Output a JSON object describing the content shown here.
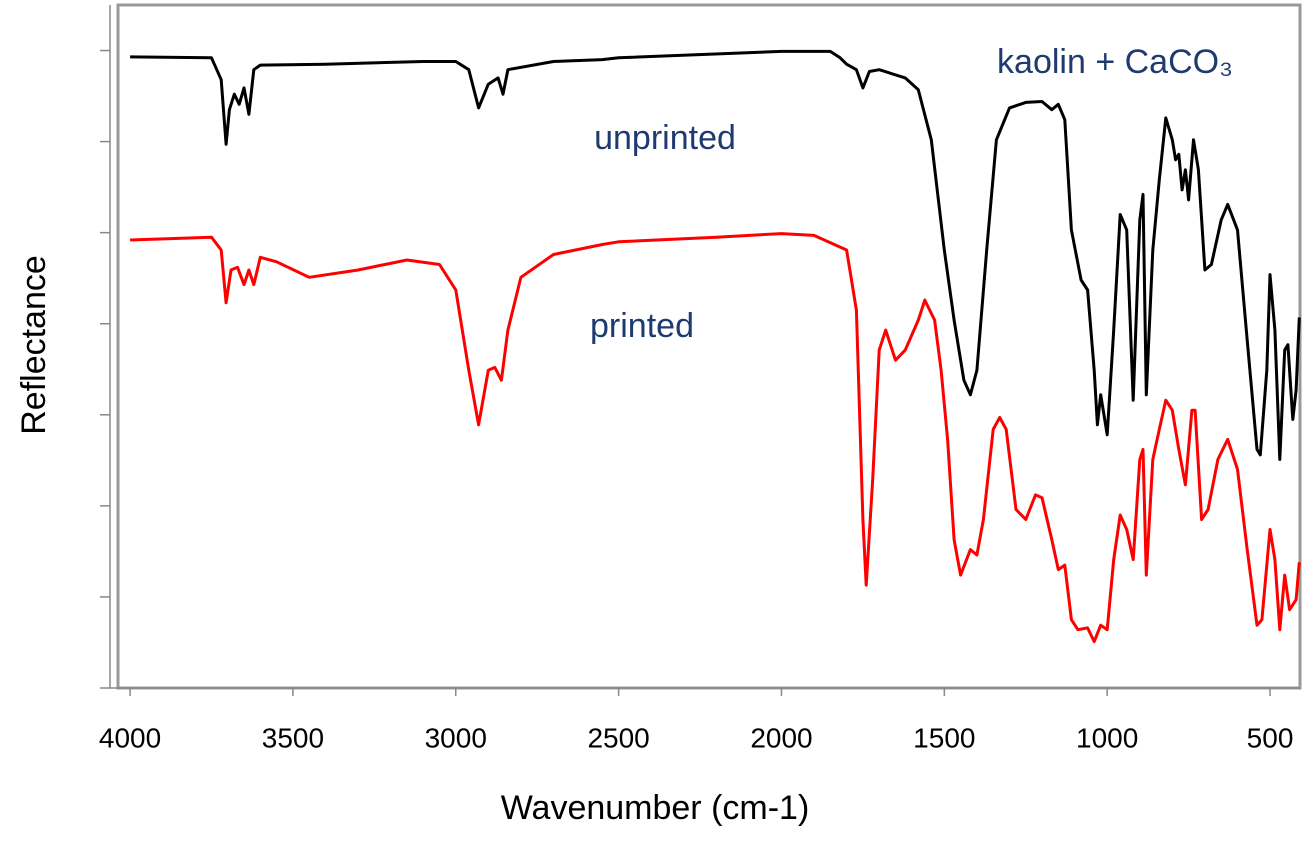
{
  "chart_data": {
    "type": "line",
    "xlabel": "Wavenumber (cm-1)",
    "ylabel": "Reflectance",
    "xlim": [
      4037,
      408
    ],
    "xticks": [
      4000,
      3500,
      3000,
      2500,
      2000,
      1500,
      1000,
      500
    ],
    "ylim": [
      0,
      7.5
    ],
    "yticks": [
      0,
      1,
      2,
      3,
      4,
      5,
      6,
      7
    ],
    "annotations": [
      "kaolin + CaCO₃",
      "unprinted",
      "printed"
    ],
    "series": [
      {
        "color": "#000000",
        "x": [
          4000,
          3750,
          3720,
          3705,
          3695,
          3680,
          3665,
          3650,
          3635,
          3620,
          3600,
          3400,
          3100,
          3000,
          2960,
          2930,
          2900,
          2870,
          2855,
          2840,
          2700,
          2550,
          2500,
          2000,
          1850,
          1820,
          1800,
          1770,
          1750,
          1730,
          1700,
          1620,
          1580,
          1540,
          1500,
          1470,
          1440,
          1420,
          1400,
          1370,
          1340,
          1300,
          1250,
          1200,
          1170,
          1150,
          1130,
          1110,
          1080,
          1060,
          1040,
          1030,
          1020,
          1000,
          980,
          960,
          940,
          920,
          900,
          890,
          880,
          860,
          840,
          820,
          800,
          790,
          780,
          770,
          760,
          750,
          735,
          720,
          700,
          680,
          650,
          630,
          600,
          570,
          540,
          530,
          510,
          500,
          485,
          470,
          455,
          445,
          430,
          420,
          410
        ],
        "values": [
          6.93,
          6.92,
          6.68,
          5.97,
          6.35,
          6.52,
          6.41,
          6.59,
          6.3,
          6.79,
          6.84,
          6.85,
          6.88,
          6.88,
          6.79,
          6.37,
          6.63,
          6.7,
          6.52,
          6.79,
          6.88,
          6.9,
          6.92,
          6.99,
          6.99,
          6.92,
          6.85,
          6.79,
          6.59,
          6.77,
          6.79,
          6.7,
          6.57,
          6.02,
          4.81,
          4.04,
          3.38,
          3.22,
          3.49,
          4.81,
          6.02,
          6.37,
          6.43,
          6.44,
          6.35,
          6.41,
          6.24,
          5.03,
          4.48,
          4.37,
          3.49,
          2.89,
          3.22,
          2.78,
          3.93,
          5.2,
          5.03,
          3.16,
          5.14,
          5.42,
          3.22,
          4.81,
          5.58,
          6.26,
          6.02,
          5.8,
          5.86,
          5.47,
          5.69,
          5.36,
          6.02,
          5.69,
          4.59,
          4.65,
          5.14,
          5.31,
          5.03,
          3.82,
          2.62,
          2.56,
          3.49,
          4.54,
          3.93,
          2.51,
          3.71,
          3.77,
          2.95,
          3.27,
          4.07
        ]
      },
      {
        "color": "#ff0000",
        "x": [
          4000,
          3750,
          3720,
          3705,
          3690,
          3670,
          3650,
          3635,
          3620,
          3600,
          3550,
          3450,
          3300,
          3150,
          3050,
          3000,
          2960,
          2930,
          2900,
          2880,
          2860,
          2840,
          2800,
          2700,
          2550,
          2500,
          2200,
          2000,
          1900,
          1800,
          1770,
          1750,
          1740,
          1720,
          1700,
          1680,
          1650,
          1620,
          1580,
          1560,
          1530,
          1510,
          1490,
          1470,
          1450,
          1420,
          1400,
          1380,
          1350,
          1330,
          1310,
          1280,
          1250,
          1220,
          1200,
          1170,
          1150,
          1130,
          1110,
          1090,
          1060,
          1040,
          1020,
          1000,
          980,
          960,
          940,
          920,
          900,
          890,
          880,
          860,
          840,
          820,
          800,
          780,
          760,
          740,
          730,
          710,
          690,
          660,
          630,
          600,
          570,
          540,
          525,
          500,
          485,
          470,
          455,
          440,
          420,
          410
        ],
        "values": [
          4.92,
          4.95,
          4.81,
          4.23,
          4.59,
          4.62,
          4.43,
          4.59,
          4.43,
          4.73,
          4.68,
          4.51,
          4.59,
          4.7,
          4.65,
          4.37,
          3.49,
          2.89,
          3.49,
          3.52,
          3.38,
          3.93,
          4.51,
          4.76,
          4.87,
          4.9,
          4.95,
          4.99,
          4.97,
          4.81,
          4.15,
          1.85,
          1.13,
          2.29,
          3.71,
          3.93,
          3.6,
          3.71,
          4.04,
          4.26,
          4.04,
          3.49,
          2.73,
          1.63,
          1.24,
          1.52,
          1.46,
          1.85,
          2.84,
          2.97,
          2.84,
          1.96,
          1.85,
          2.12,
          2.09,
          1.63,
          1.3,
          1.35,
          0.75,
          0.64,
          0.66,
          0.51,
          0.69,
          0.64,
          1.41,
          1.9,
          1.74,
          1.41,
          2.51,
          2.62,
          1.24,
          2.51,
          2.84,
          3.16,
          3.05,
          2.62,
          2.23,
          3.05,
          3.05,
          1.85,
          1.96,
          2.51,
          2.73,
          2.4,
          1.52,
          0.69,
          0.75,
          1.74,
          1.41,
          0.64,
          1.24,
          0.86,
          0.97,
          1.38
        ]
      }
    ]
  }
}
